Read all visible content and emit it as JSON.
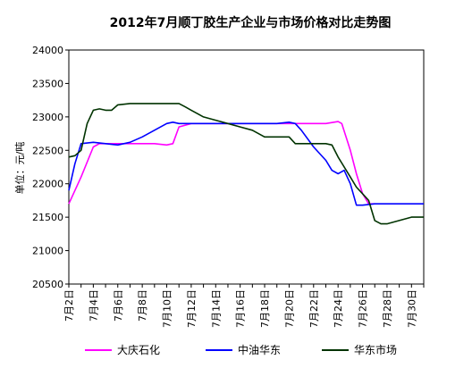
{
  "chart_data": {
    "type": "line",
    "title": "2012年7月顺丁胶生产企业与市场价格对比走势图",
    "ylabel": "单位：元/吨",
    "xlabel": "",
    "ylim": [
      20500,
      24000
    ],
    "yticks": [
      20500,
      21000,
      21500,
      22000,
      22500,
      23000,
      23500,
      24000
    ],
    "xlim": [
      2,
      31
    ],
    "xticks": [
      {
        "day": 2,
        "label": "7月2日"
      },
      {
        "day": 4,
        "label": "7月4日"
      },
      {
        "day": 6,
        "label": "7月6日"
      },
      {
        "day": 8,
        "label": "7月8日"
      },
      {
        "day": 10,
        "label": "7月10日"
      },
      {
        "day": 12,
        "label": "7月12日"
      },
      {
        "day": 14,
        "label": "7月14日"
      },
      {
        "day": 16,
        "label": "7月16日"
      },
      {
        "day": 18,
        "label": "7月18日"
      },
      {
        "day": 20,
        "label": "7月20日"
      },
      {
        "day": 22,
        "label": "7月22日"
      },
      {
        "day": 24,
        "label": "7月24日"
      },
      {
        "day": 26,
        "label": "7月26日"
      },
      {
        "day": 28,
        "label": "7月28日"
      },
      {
        "day": 30,
        "label": "7月30日"
      }
    ],
    "grid": false,
    "legend_position": "bottom",
    "series": [
      {
        "name": "大庆石化",
        "color": "#ff00ff",
        "points": [
          [
            2,
            21700
          ],
          [
            3,
            22100
          ],
          [
            4,
            22550
          ],
          [
            4.5,
            22600
          ],
          [
            5,
            22600
          ],
          [
            6,
            22600
          ],
          [
            7,
            22600
          ],
          [
            8,
            22600
          ],
          [
            9,
            22600
          ],
          [
            10,
            22580
          ],
          [
            10.5,
            22600
          ],
          [
            11,
            22850
          ],
          [
            12,
            22900
          ],
          [
            13,
            22900
          ],
          [
            20,
            22900
          ],
          [
            23,
            22900
          ],
          [
            24,
            22930
          ],
          [
            24.3,
            22900
          ],
          [
            25,
            22500
          ],
          [
            25.5,
            22150
          ],
          [
            26,
            21850
          ],
          [
            26.5,
            21700
          ],
          [
            27,
            21700
          ]
        ]
      },
      {
        "name": "中油华东",
        "color": "#0000ff",
        "points": [
          [
            2,
            21900
          ],
          [
            2.5,
            22300
          ],
          [
            3,
            22600
          ],
          [
            4,
            22620
          ],
          [
            5,
            22600
          ],
          [
            6,
            22580
          ],
          [
            7,
            22620
          ],
          [
            8,
            22700
          ],
          [
            9,
            22800
          ],
          [
            10,
            22900
          ],
          [
            10.5,
            22920
          ],
          [
            11,
            22900
          ],
          [
            12,
            22900
          ],
          [
            19,
            22900
          ],
          [
            20,
            22920
          ],
          [
            20.5,
            22900
          ],
          [
            21,
            22800
          ],
          [
            22,
            22550
          ],
          [
            23,
            22350
          ],
          [
            23.5,
            22200
          ],
          [
            24,
            22150
          ],
          [
            24.5,
            22200
          ],
          [
            25,
            22000
          ],
          [
            25.5,
            21680
          ],
          [
            26,
            21680
          ],
          [
            27,
            21700
          ],
          [
            30,
            21700
          ],
          [
            31,
            21700
          ]
        ]
      },
      {
        "name": "华东市场",
        "color": "#003300",
        "points": [
          [
            2,
            22400
          ],
          [
            2.5,
            22420
          ],
          [
            3,
            22500
          ],
          [
            3.5,
            22900
          ],
          [
            4,
            23100
          ],
          [
            4.5,
            23120
          ],
          [
            5,
            23100
          ],
          [
            5.5,
            23100
          ],
          [
            6,
            23180
          ],
          [
            7,
            23200
          ],
          [
            8,
            23200
          ],
          [
            10,
            23200
          ],
          [
            11,
            23200
          ],
          [
            11.5,
            23150
          ],
          [
            12,
            23100
          ],
          [
            13,
            23000
          ],
          [
            14,
            22950
          ],
          [
            15,
            22900
          ],
          [
            16,
            22850
          ],
          [
            17,
            22800
          ],
          [
            18,
            22700
          ],
          [
            19,
            22700
          ],
          [
            20,
            22700
          ],
          [
            20.5,
            22600
          ],
          [
            21,
            22600
          ],
          [
            22,
            22600
          ],
          [
            23,
            22600
          ],
          [
            23.5,
            22580
          ],
          [
            24,
            22400
          ],
          [
            25,
            22100
          ],
          [
            25.5,
            21950
          ],
          [
            26,
            21850
          ],
          [
            26.5,
            21750
          ],
          [
            27,
            21450
          ],
          [
            27.5,
            21400
          ],
          [
            28,
            21400
          ],
          [
            29,
            21450
          ],
          [
            30,
            21500
          ],
          [
            31,
            21500
          ]
        ]
      }
    ]
  }
}
